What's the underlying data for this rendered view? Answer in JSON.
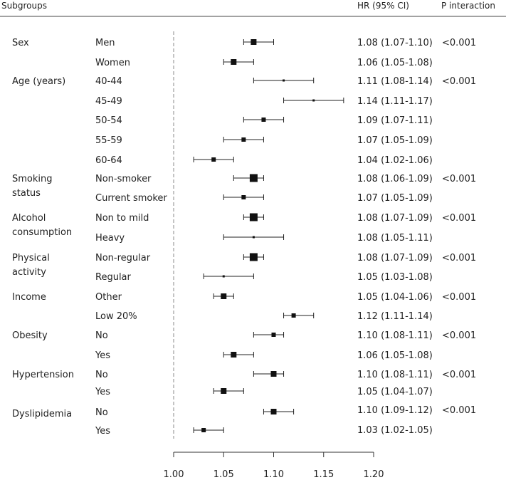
{
  "chart_data": {
    "type": "forest",
    "columns": {
      "subgroups": "Subgroups",
      "hr": "HR (95% CI)",
      "p": "P interaction"
    },
    "xaxis": {
      "ticks": [
        1.0,
        1.05,
        1.1,
        1.15,
        1.2
      ],
      "tick_labels": [
        "1.00",
        "1.05",
        "1.10",
        "1.15",
        "1.20"
      ],
      "xlim": [
        1.0,
        1.2
      ],
      "reference_line": 1.0
    },
    "groups": [
      {
        "label": [
          "Sex"
        ],
        "p": "<0.001",
        "rows": [
          {
            "label": "Men",
            "hr": 1.08,
            "lo": 1.07,
            "hi": 1.1,
            "ci_text": "1.08 (1.07-1.10)",
            "weight": "medium"
          },
          {
            "label": "Women",
            "hr": 1.06,
            "lo": 1.05,
            "hi": 1.08,
            "ci_text": "1.06 (1.05-1.08)",
            "weight": "medium"
          }
        ]
      },
      {
        "label": [
          "Age (years)"
        ],
        "p": "<0.001",
        "rows": [
          {
            "label": "40-44",
            "hr": 1.11,
            "lo": 1.08,
            "hi": 1.14,
            "ci_text": "1.11 (1.08-1.14)",
            "weight": "tiny"
          },
          {
            "label": "45-49",
            "hr": 1.14,
            "lo": 1.11,
            "hi": 1.17,
            "ci_text": "1.14 (1.11-1.17)",
            "weight": "tiny"
          },
          {
            "label": "50-54",
            "hr": 1.09,
            "lo": 1.07,
            "hi": 1.11,
            "ci_text": "1.09 (1.07-1.11)",
            "weight": "small"
          },
          {
            "label": "55-59",
            "hr": 1.07,
            "lo": 1.05,
            "hi": 1.09,
            "ci_text": "1.07 (1.05-1.09)",
            "weight": "small"
          },
          {
            "label": "60-64",
            "hr": 1.04,
            "lo": 1.02,
            "hi": 1.06,
            "ci_text": "1.04 (1.02-1.06)",
            "weight": "small"
          }
        ]
      },
      {
        "label": [
          "Smoking",
          "status"
        ],
        "p": "<0.001",
        "rows": [
          {
            "label": "Non-smoker",
            "hr": 1.08,
            "lo": 1.06,
            "hi": 1.09,
            "ci_text": "1.08 (1.06-1.09)",
            "weight": "large"
          },
          {
            "label": "Current smoker",
            "hr": 1.07,
            "lo": 1.05,
            "hi": 1.09,
            "ci_text": "1.07 (1.05-1.09)",
            "weight": "small"
          }
        ]
      },
      {
        "label": [
          "Alcohol",
          "consumption"
        ],
        "p": "<0.001",
        "rows": [
          {
            "label": "Non to mild",
            "hr": 1.08,
            "lo": 1.07,
            "hi": 1.09,
            "ci_text": "1.08 (1.07-1.09)",
            "weight": "large"
          },
          {
            "label": "Heavy",
            "hr": 1.08,
            "lo": 1.05,
            "hi": 1.11,
            "ci_text": "1.08 (1.05-1.11)",
            "weight": "tiny"
          }
        ]
      },
      {
        "label": [
          "Physical",
          "activity"
        ],
        "p": "<0.001",
        "rows": [
          {
            "label": "Non-regular",
            "hr": 1.08,
            "lo": 1.07,
            "hi": 1.09,
            "ci_text": "1.08 (1.07-1.09)",
            "weight": "large"
          },
          {
            "label": "Regular",
            "hr": 1.05,
            "lo": 1.03,
            "hi": 1.08,
            "ci_text": "1.05 (1.03-1.08)",
            "weight": "tiny"
          }
        ]
      },
      {
        "label": [
          "Income"
        ],
        "p": "<0.001",
        "rows": [
          {
            "label": "Other",
            "hr": 1.05,
            "lo": 1.04,
            "hi": 1.06,
            "ci_text": "1.05 (1.04-1.06)",
            "weight": "medium"
          },
          {
            "label": "Low 20%",
            "hr": 1.12,
            "lo": 1.11,
            "hi": 1.14,
            "ci_text": "1.12 (1.11-1.14)",
            "weight": "small"
          }
        ]
      },
      {
        "label": [
          "Obesity"
        ],
        "p": "<0.001",
        "rows": [
          {
            "label": "No",
            "hr": 1.1,
            "lo": 1.08,
            "hi": 1.11,
            "ci_text": "1.10 (1.08-1.11)",
            "weight": "small"
          },
          {
            "label": "Yes",
            "hr": 1.06,
            "lo": 1.05,
            "hi": 1.08,
            "ci_text": "1.06 (1.05-1.08)",
            "weight": "medium"
          }
        ]
      },
      {
        "label": [
          "Hypertension"
        ],
        "p": "<0.001",
        "rows": [
          {
            "label": "No",
            "hr": 1.1,
            "lo": 1.08,
            "hi": 1.11,
            "ci_text": "1.10 (1.08-1.11)",
            "weight": "medium"
          },
          {
            "label": "Yes",
            "hr": 1.05,
            "lo": 1.04,
            "hi": 1.07,
            "ci_text": "1.05 (1.04-1.07)",
            "weight": "medium"
          }
        ]
      },
      {
        "label": [
          "Dyslipidemia"
        ],
        "p": "<0.001",
        "rows": [
          {
            "label": "No",
            "hr": 1.1,
            "lo": 1.09,
            "hi": 1.12,
            "ci_text": "1.10 (1.09-1.12)",
            "weight": "medium"
          },
          {
            "label": "Yes",
            "hr": 1.03,
            "lo": 1.02,
            "hi": 1.05,
            "ci_text": "1.03 (1.02-1.05)",
            "weight": "small"
          }
        ]
      }
    ]
  },
  "colors": {
    "text": "#222222",
    "marker": "#111111",
    "axis": "#333333",
    "reference": "#888888",
    "rule": "#444444"
  }
}
